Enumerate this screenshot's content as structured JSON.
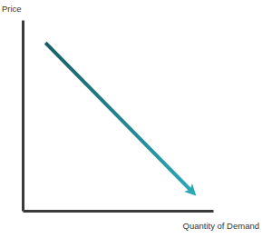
{
  "chart_data": {
    "type": "line",
    "x_label": "Quantity of Demand",
    "y_label": "Price",
    "x": [
      1.2,
      8.9
    ],
    "values": [
      8.8,
      1.0
    ],
    "color": "#2ba8b6",
    "xlim": [
      0,
      10
    ],
    "ylim": [
      0,
      10
    ],
    "xticks": [],
    "yticks": [],
    "tick_labels": false,
    "grid": false
  }
}
